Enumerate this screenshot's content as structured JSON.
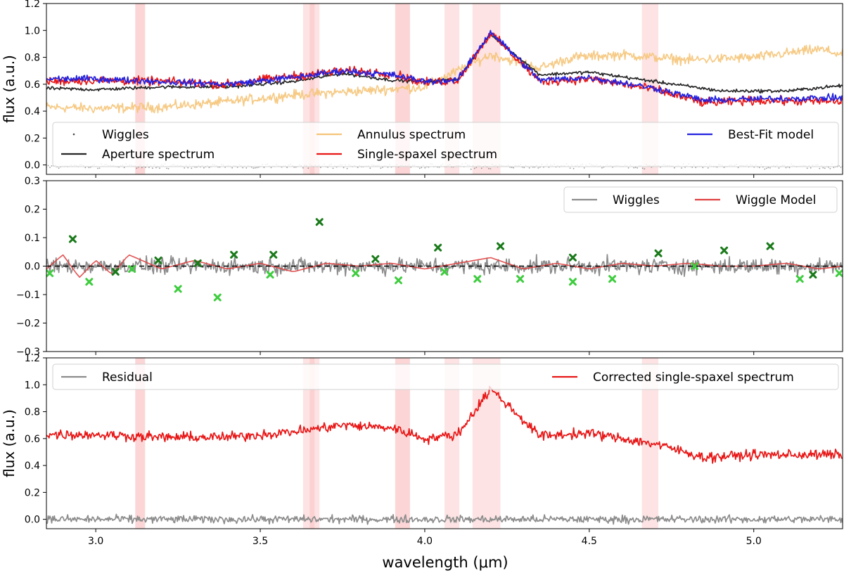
{
  "chart_data": [
    {
      "type": "line",
      "panel": "top",
      "ylabel": "flux (a.u.)",
      "xlim": [
        2.85,
        5.27
      ],
      "ylim": [
        -0.07,
        1.2
      ],
      "yticks": [
        0.0,
        0.2,
        0.4,
        0.6,
        0.8,
        1.0,
        1.2
      ],
      "ytick_labels": [
        "0.0",
        "0.2",
        "0.4",
        "0.6",
        "0.8",
        "1.0",
        "1.2"
      ],
      "shaded_regions": [
        [
          3.12,
          3.15
        ],
        [
          3.63,
          3.68
        ],
        [
          3.65,
          3.665
        ],
        [
          3.91,
          3.955
        ],
        [
          4.06,
          4.105
        ],
        [
          4.145,
          4.23
        ],
        [
          4.66,
          4.71
        ]
      ],
      "legend": [
        "Wiggles",
        "Aperture spectrum",
        "Annulus spectrum",
        "Single-spaxel spectrum",
        "Best-Fit model"
      ],
      "legend_placement": "lower-center",
      "series": [
        {
          "name": "Annulus spectrum",
          "color": "#f5c478",
          "x": [
            2.85,
            3.0,
            3.2,
            3.4,
            3.6,
            3.8,
            4.0,
            4.2,
            4.35,
            4.45,
            4.6,
            4.8,
            5.0,
            5.2,
            5.27
          ],
          "y": [
            0.43,
            0.42,
            0.43,
            0.47,
            0.52,
            0.55,
            0.58,
            0.82,
            0.72,
            0.8,
            0.82,
            0.78,
            0.8,
            0.86,
            0.82
          ]
        },
        {
          "name": "Aperture spectrum",
          "color": "#262626",
          "x": [
            2.85,
            3.0,
            3.2,
            3.4,
            3.6,
            3.75,
            3.9,
            4.0,
            4.1,
            4.2,
            4.35,
            4.5,
            4.7,
            4.9,
            5.1,
            5.27
          ],
          "y": [
            0.57,
            0.56,
            0.58,
            0.58,
            0.62,
            0.68,
            0.63,
            0.62,
            0.64,
            0.97,
            0.67,
            0.69,
            0.62,
            0.55,
            0.55,
            0.59
          ]
        },
        {
          "name": "Single-spaxel spectrum",
          "color": "#e81616",
          "x": [
            2.85,
            3.0,
            3.2,
            3.4,
            3.6,
            3.75,
            3.9,
            4.0,
            4.1,
            4.2,
            4.35,
            4.5,
            4.7,
            4.85,
            5.0,
            5.27
          ],
          "y": [
            0.62,
            0.63,
            0.62,
            0.6,
            0.66,
            0.7,
            0.68,
            0.61,
            0.63,
            0.98,
            0.62,
            0.64,
            0.56,
            0.46,
            0.48,
            0.47
          ]
        },
        {
          "name": "Best-Fit model",
          "color": "#2222e0",
          "x": [
            2.85,
            3.0,
            3.2,
            3.4,
            3.6,
            3.75,
            3.9,
            4.0,
            4.1,
            4.2,
            4.35,
            4.5,
            4.7,
            4.85,
            5.0,
            5.27
          ],
          "y": [
            0.64,
            0.64,
            0.62,
            0.6,
            0.65,
            0.7,
            0.67,
            0.62,
            0.63,
            0.99,
            0.63,
            0.65,
            0.57,
            0.48,
            0.49,
            0.5
          ]
        },
        {
          "name": "Wiggles",
          "color": "#555555",
          "style": "dots",
          "x": [
            2.85,
            5.27
          ],
          "y": [
            0.0,
            0.0
          ]
        }
      ]
    },
    {
      "type": "line",
      "panel": "middle",
      "ylim": [
        -0.3,
        0.3
      ],
      "yticks": [
        -0.3,
        -0.2,
        -0.1,
        0.0,
        0.1,
        0.2,
        0.3
      ],
      "ytick_labels": [
        "−0.3",
        "−0.2",
        "−0.1",
        "0.0",
        "0.1",
        "0.2",
        "0.3"
      ],
      "legend": [
        "Wiggles",
        "Wiggle Model"
      ],
      "legend_placement": "top-right",
      "series": [
        {
          "name": "Wiggles",
          "color": "#8c8c8c",
          "x": [
            2.85,
            5.27
          ],
          "y": [
            0.0,
            0.0
          ]
        },
        {
          "name": "Wiggle Model",
          "color": "#e04040",
          "x": [
            2.85,
            2.9,
            2.95,
            3.0,
            3.05,
            3.1,
            3.2,
            3.3,
            3.4,
            3.5,
            3.6,
            3.7,
            3.8,
            3.9,
            4.0,
            4.1,
            4.2,
            4.3,
            4.4,
            4.5,
            4.6,
            4.7,
            4.8,
            4.9,
            5.0,
            5.1,
            5.2,
            5.27
          ],
          "y": [
            -0.01,
            0.04,
            -0.04,
            0.02,
            -0.03,
            0.04,
            -0.01,
            0.02,
            -0.01,
            0.01,
            -0.02,
            0.01,
            0.0,
            0.01,
            -0.01,
            0.01,
            0.03,
            -0.01,
            0.01,
            -0.01,
            0.01,
            0.0,
            0.01,
            0.0,
            0.0,
            0.01,
            -0.01,
            0.0
          ]
        },
        {
          "name": "reference",
          "color": "#000000",
          "style": "dashed",
          "x": [
            2.85,
            5.27
          ],
          "y": [
            0.0,
            0.0
          ]
        }
      ],
      "markers_dark": [
        [
          2.93,
          0.095
        ],
        [
          3.06,
          -0.02
        ],
        [
          3.19,
          0.02
        ],
        [
          3.31,
          0.01
        ],
        [
          3.42,
          0.04
        ],
        [
          3.54,
          0.04
        ],
        [
          3.68,
          0.155
        ],
        [
          3.85,
          0.025
        ],
        [
          4.04,
          0.065
        ],
        [
          4.23,
          0.07
        ],
        [
          4.45,
          0.03
        ],
        [
          4.71,
          0.045
        ],
        [
          4.91,
          0.055
        ],
        [
          5.05,
          0.07
        ],
        [
          5.18,
          -0.03
        ]
      ],
      "markers_light": [
        [
          2.86,
          -0.025
        ],
        [
          2.98,
          -0.055
        ],
        [
          3.11,
          -0.01
        ],
        [
          3.25,
          -0.08
        ],
        [
          3.37,
          -0.11
        ],
        [
          3.53,
          -0.03
        ],
        [
          3.79,
          -0.025
        ],
        [
          3.92,
          -0.05
        ],
        [
          4.06,
          -0.02
        ],
        [
          4.16,
          -0.045
        ],
        [
          4.29,
          -0.045
        ],
        [
          4.45,
          -0.055
        ],
        [
          4.57,
          -0.045
        ],
        [
          4.82,
          0.0
        ],
        [
          5.14,
          -0.045
        ],
        [
          5.26,
          -0.025
        ]
      ]
    },
    {
      "type": "line",
      "panel": "bottom",
      "xlabel": "wavelength (μm)",
      "ylabel": "flux (a.u.)",
      "xlim": [
        2.85,
        5.27
      ],
      "ylim": [
        -0.07,
        1.2
      ],
      "xticks": [
        3.0,
        3.5,
        4.0,
        4.5,
        5.0
      ],
      "xtick_labels": [
        "3.0",
        "3.5",
        "4.0",
        "4.5",
        "5.0"
      ],
      "yticks": [
        0.0,
        0.2,
        0.4,
        0.6,
        0.8,
        1.0,
        1.2
      ],
      "ytick_labels": [
        "0.0",
        "0.2",
        "0.4",
        "0.6",
        "0.8",
        "1.0",
        "1.2"
      ],
      "shaded_regions": [
        [
          3.12,
          3.15
        ],
        [
          3.63,
          3.68
        ],
        [
          3.65,
          3.665
        ],
        [
          3.91,
          3.955
        ],
        [
          4.06,
          4.105
        ],
        [
          4.145,
          4.23
        ],
        [
          4.66,
          4.71
        ]
      ],
      "legend": [
        "Residual",
        "Corrected single-spaxel spectrum"
      ],
      "legend_placement": "top",
      "series": [
        {
          "name": "Residual",
          "color": "#8c8c8c",
          "x": [
            2.85,
            5.27
          ],
          "y": [
            0.0,
            0.0
          ]
        },
        {
          "name": "Corrected single-spaxel spectrum",
          "color": "#e81616",
          "x": [
            2.85,
            3.0,
            3.2,
            3.4,
            3.6,
            3.75,
            3.9,
            4.0,
            4.1,
            4.2,
            4.35,
            4.5,
            4.7,
            4.85,
            5.0,
            5.27
          ],
          "y": [
            0.63,
            0.63,
            0.61,
            0.61,
            0.65,
            0.7,
            0.68,
            0.6,
            0.63,
            0.97,
            0.62,
            0.64,
            0.56,
            0.46,
            0.48,
            0.48
          ]
        }
      ]
    }
  ]
}
